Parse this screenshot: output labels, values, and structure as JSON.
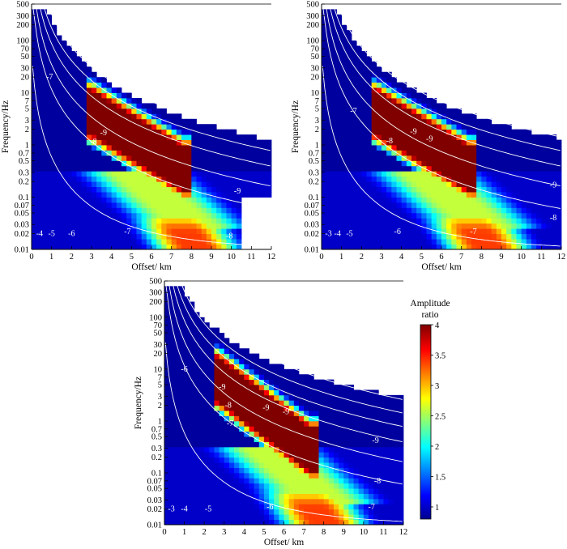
{
  "chart_data": [
    {
      "type": "heatmap",
      "xlabel": "Offset/ km",
      "ylabel": "Frequency/Hz",
      "xlim": [
        0,
        12
      ],
      "ylim": [
        0.01,
        500
      ],
      "yscale": "log",
      "x_ticks": [
        "0",
        "1",
        "2",
        "3",
        "4",
        "5",
        "6",
        "7",
        "8",
        "9",
        "10",
        "11",
        "12"
      ],
      "y_ticks": [
        "0.01",
        "0.02",
        "0.03",
        "0.05",
        "0.07",
        "0.1",
        "0.2",
        "0.3",
        "0.5",
        "0.7",
        "1",
        "2",
        "3",
        "5",
        "7",
        "10",
        "20",
        "30",
        "50",
        "70",
        "100",
        "200",
        "300",
        "500"
      ],
      "contour_labels": [
        {
          "text": "-4",
          "x": 0.4,
          "f": 0.02
        },
        {
          "text": "-5",
          "x": 1.0,
          "f": 0.02
        },
        {
          "text": "-6",
          "x": 2.0,
          "f": 0.02
        },
        {
          "text": "-7",
          "x": 4.8,
          "f": 0.022
        },
        {
          "text": "-8",
          "x": 9.9,
          "f": 0.018
        },
        {
          "text": "-9",
          "x": 10.3,
          "f": 0.13
        },
        {
          "text": "-9",
          "x": 3.6,
          "f": 1.7
        },
        {
          "text": "-8",
          "x": 3.1,
          "f": 1.15
        },
        {
          "text": "-7",
          "x": 0.9,
          "f": 20
        }
      ]
    },
    {
      "type": "heatmap",
      "xlabel": "Offset/ km",
      "ylabel": "Frequency/Hz",
      "xlim": [
        0,
        12
      ],
      "ylim": [
        0.01,
        500
      ],
      "yscale": "log",
      "x_ticks": [
        "0",
        "1",
        "2",
        "3",
        "4",
        "5",
        "6",
        "7",
        "8",
        "9",
        "10",
        "11",
        "12"
      ],
      "y_ticks": [
        "0.01",
        "0.02",
        "0.03",
        "0.05",
        "0.07",
        "0.1",
        "0.2",
        "0.3",
        "0.5",
        "0.7",
        "1",
        "2",
        "3",
        "5",
        "7",
        "10",
        "20",
        "30",
        "50",
        "70",
        "100",
        "200",
        "300",
        "500"
      ],
      "contour_labels": [
        {
          "text": "-3",
          "x": 0.35,
          "f": 0.02
        },
        {
          "text": "-4",
          "x": 0.8,
          "f": 0.02
        },
        {
          "text": "-5",
          "x": 1.4,
          "f": 0.02
        },
        {
          "text": "-6",
          "x": 3.8,
          "f": 0.022
        },
        {
          "text": "-7",
          "x": 7.6,
          "f": 0.022
        },
        {
          "text": "-8",
          "x": 11.6,
          "f": 0.04
        },
        {
          "text": "-9",
          "x": 11.6,
          "f": 0.17
        },
        {
          "text": "-9",
          "x": 4.6,
          "f": 1.8
        },
        {
          "text": "-9",
          "x": 5.4,
          "f": 1.3
        },
        {
          "text": "-8",
          "x": 3.4,
          "f": 1.2
        },
        {
          "text": "-7",
          "x": 1.6,
          "f": 4.5
        }
      ]
    },
    {
      "type": "heatmap",
      "xlabel": "Offset/ km",
      "ylabel": "Frequency/Hz",
      "xlim": [
        0,
        12
      ],
      "ylim": [
        0.01,
        500
      ],
      "yscale": "log",
      "x_ticks": [
        "0",
        "1",
        "2",
        "3",
        "4",
        "5",
        "6",
        "7",
        "8",
        "9",
        "10",
        "11",
        "12"
      ],
      "y_ticks": [
        "0.01",
        "0.02",
        "0.03",
        "0.05",
        "0.07",
        "0.1",
        "0.2",
        "0.3",
        "0.5",
        "0.7",
        "1",
        "2",
        "3",
        "5",
        "7",
        "10",
        "20",
        "30",
        "50",
        "70",
        "100",
        "200",
        "300",
        "500"
      ],
      "contour_labels": [
        {
          "text": "-3",
          "x": 0.35,
          "f": 0.02
        },
        {
          "text": "-4",
          "x": 1.0,
          "f": 0.02
        },
        {
          "text": "-5",
          "x": 2.2,
          "f": 0.02
        },
        {
          "text": "-6",
          "x": 5.3,
          "f": 0.022
        },
        {
          "text": "-7",
          "x": 10.4,
          "f": 0.022
        },
        {
          "text": "-8",
          "x": 10.7,
          "f": 0.07
        },
        {
          "text": "-9",
          "x": 10.6,
          "f": 0.42
        },
        {
          "text": "-9",
          "x": 2.9,
          "f": 4.5
        },
        {
          "text": "-8",
          "x": 3.2,
          "f": 2.0
        },
        {
          "text": "-7",
          "x": 3.3,
          "f": 0.9
        },
        {
          "text": "-9",
          "x": 5.1,
          "f": 1.8
        },
        {
          "text": "-9",
          "x": 6.1,
          "f": 1.5
        },
        {
          "text": "-6",
          "x": 1.0,
          "f": 10
        }
      ]
    }
  ],
  "colorbar": {
    "title_line1": "Amplitude",
    "title_line2": "ratio",
    "ticks": [
      "1",
      "1.5",
      "2",
      "2.5",
      "3",
      "3.5",
      "4"
    ],
    "range": [
      0.8,
      4
    ],
    "colormap": [
      "#00008f",
      "#0000ff",
      "#00ffff",
      "#ffff00",
      "#ff0000",
      "#800000"
    ]
  }
}
